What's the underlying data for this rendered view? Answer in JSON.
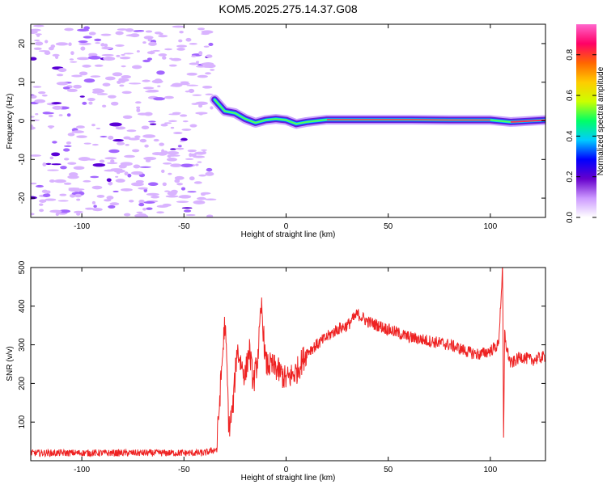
{
  "title": "KOM5.2025.275.14.37.G08",
  "spectrogram": {
    "xlabel": "Height of straight line (km)",
    "ylabel": "Frequency (Hz)",
    "xlim": [
      -125,
      127
    ],
    "ylim": [
      -25,
      25
    ],
    "xticks": [
      -100,
      -50,
      0,
      50,
      100
    ],
    "yticks": [
      -20,
      -10,
      0,
      10,
      20
    ],
    "ridge_points": [
      {
        "x": -35,
        "y": 5.5
      },
      {
        "x": -30,
        "y": 2.5
      },
      {
        "x": -25,
        "y": 2.0
      },
      {
        "x": -20,
        "y": 0.5
      },
      {
        "x": -15,
        "y": -0.5
      },
      {
        "x": -10,
        "y": 0.2
      },
      {
        "x": -5,
        "y": 0.5
      },
      {
        "x": 0,
        "y": 0.2
      },
      {
        "x": 5,
        "y": -0.8
      },
      {
        "x": 10,
        "y": -0.3
      },
      {
        "x": 20,
        "y": 0.3
      },
      {
        "x": 40,
        "y": 0.3
      },
      {
        "x": 60,
        "y": 0.3
      },
      {
        "x": 80,
        "y": 0.2
      },
      {
        "x": 100,
        "y": 0.2
      },
      {
        "x": 110,
        "y": -0.3
      },
      {
        "x": 127,
        "y": 0.2
      }
    ]
  },
  "colorbar": {
    "label": "Normalized spectral amplitude",
    "ticks": [
      0.0,
      0.2,
      0.4,
      0.6,
      0.8
    ],
    "tick_labels": [
      "0.0",
      "0.2",
      "0.4",
      "0.6",
      "0.8"
    ],
    "colors": [
      "#ffffff",
      "#cc99ff",
      "#6600cc",
      "#0000ff",
      "#00ccff",
      "#00ff66",
      "#ccff00",
      "#ffcc00",
      "#ff6600",
      "#ff0066",
      "#ff66cc"
    ]
  },
  "chart_data": [
    {
      "type": "heatmap",
      "title": "KOM5.2025.275.14.37.G08",
      "xlabel": "Height of straight line (km)",
      "ylabel": "Frequency (Hz)",
      "xlim": [
        -125,
        127
      ],
      "ylim": [
        -25,
        25
      ],
      "colorbar_label": "Normalized spectral amplitude",
      "colorbar_range": [
        0,
        0.95
      ]
    },
    {
      "type": "line",
      "xlabel": "Height of straight line (km)",
      "ylabel": "SNR (v/v)",
      "xlim": [
        -125,
        127
      ],
      "ylim": [
        0,
        500
      ],
      "color": "#ee2222",
      "x": [
        -125,
        -100,
        -75,
        -50,
        -40,
        -34,
        -32,
        -30,
        -29,
        -28,
        -26,
        -24,
        -22,
        -20,
        -18,
        -16,
        -14,
        -12,
        -10,
        -5,
        0,
        5,
        10,
        15,
        20,
        25,
        30,
        35,
        40,
        45,
        50,
        55,
        60,
        65,
        70,
        75,
        80,
        85,
        90,
        95,
        100,
        104,
        106,
        106.5,
        107,
        108,
        110,
        115,
        120,
        127
      ],
      "y": [
        20,
        20,
        20,
        20,
        20,
        30,
        200,
        360,
        250,
        80,
        140,
        290,
        250,
        220,
        290,
        200,
        260,
        400,
        250,
        240,
        210,
        230,
        280,
        300,
        320,
        340,
        350,
        380,
        360,
        350,
        340,
        330,
        320,
        315,
        310,
        305,
        300,
        290,
        280,
        275,
        285,
        300,
        500,
        40,
        330,
        290,
        250,
        270,
        260,
        270
      ]
    }
  ],
  "snr": {
    "xlabel": "Height of straight line (km)",
    "ylabel": "SNR (v/v)",
    "xticks": [
      -100,
      -50,
      0,
      50,
      100
    ],
    "yticks": [
      100,
      200,
      300,
      400,
      500
    ]
  }
}
